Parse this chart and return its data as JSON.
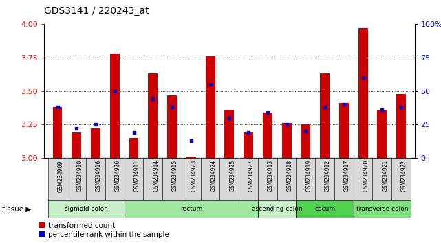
{
  "title": "GDS3141 / 220243_at",
  "samples": [
    "GSM234909",
    "GSM234910",
    "GSM234916",
    "GSM234926",
    "GSM234911",
    "GSM234914",
    "GSM234915",
    "GSM234923",
    "GSM234924",
    "GSM234925",
    "GSM234927",
    "GSM234913",
    "GSM234918",
    "GSM234919",
    "GSM234912",
    "GSM234917",
    "GSM234920",
    "GSM234921",
    "GSM234922"
  ],
  "red_values": [
    3.38,
    3.19,
    3.22,
    3.78,
    3.15,
    3.63,
    3.47,
    3.01,
    3.76,
    3.36,
    3.19,
    3.34,
    3.26,
    3.25,
    3.63,
    3.41,
    3.97,
    3.36,
    3.48
  ],
  "blue_values": [
    3.38,
    3.22,
    3.25,
    3.5,
    3.19,
    3.44,
    3.38,
    3.13,
    3.55,
    3.3,
    3.19,
    3.34,
    3.25,
    3.2,
    3.38,
    3.4,
    3.6,
    3.36,
    3.38
  ],
  "ylim_left": [
    3.0,
    4.0
  ],
  "ylim_right": [
    0,
    100
  ],
  "yticks_left": [
    3.0,
    3.25,
    3.5,
    3.75,
    4.0
  ],
  "yticks_right": [
    0,
    25,
    50,
    75,
    100
  ],
  "grid_values": [
    3.25,
    3.5,
    3.75
  ],
  "tissues": [
    {
      "label": "sigmoid colon",
      "start": 0,
      "end": 4,
      "color": "#c8f0c8"
    },
    {
      "label": "rectum",
      "start": 4,
      "end": 11,
      "color": "#a0e8a0"
    },
    {
      "label": "ascending colon",
      "start": 11,
      "end": 13,
      "color": "#c8f0c8"
    },
    {
      "label": "cecum",
      "start": 13,
      "end": 16,
      "color": "#50d050"
    },
    {
      "label": "transverse colon",
      "start": 16,
      "end": 19,
      "color": "#80e080"
    }
  ],
  "bar_color_red": "#cc0000",
  "bar_color_blue": "#0000cc",
  "legend_red": "transformed count",
  "legend_blue": "percentile rank within the sample",
  "tissue_label": "tissue ▶",
  "background_color": "#ffffff",
  "bar_width": 0.5,
  "base_value": 3.0
}
